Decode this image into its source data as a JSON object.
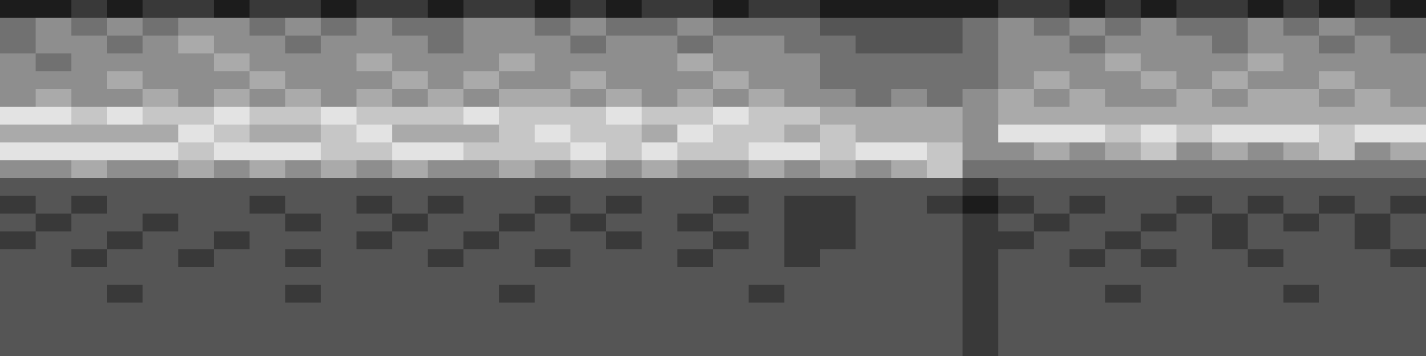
{
  "chart_data": {
    "type": "heatmap",
    "tick_labels": false,
    "color_range": [
      0,
      9
    ],
    "cells": [
      [
        1,
        1,
        2,
        1,
        2,
        2,
        1,
        2,
        2,
        1,
        2,
        2,
        1,
        2,
        2,
        1,
        2,
        1,
        2,
        2,
        1,
        2,
        2,
        1,
        1,
        1,
        1,
        1,
        2,
        2,
        1,
        2,
        1,
        2,
        2,
        1,
        2,
        1,
        2,
        1
      ],
      [
        4,
        5,
        4,
        5,
        4,
        5,
        5,
        4,
        5,
        4,
        5,
        4,
        4,
        5,
        5,
        4,
        5,
        4,
        4,
        5,
        4,
        4,
        4,
        3,
        3,
        3,
        3,
        4,
        5,
        4,
        5,
        4,
        5,
        4,
        4,
        5,
        4,
        5,
        4,
        4
      ],
      [
        4,
        5,
        5,
        4,
        5,
        6,
        5,
        5,
        4,
        5,
        5,
        5,
        4,
        5,
        5,
        5,
        4,
        5,
        5,
        4,
        5,
        5,
        4,
        4,
        3,
        3,
        3,
        4,
        5,
        5,
        4,
        5,
        5,
        5,
        4,
        5,
        5,
        4,
        5,
        4
      ],
      [
        5,
        4,
        5,
        5,
        5,
        5,
        6,
        5,
        5,
        5,
        6,
        5,
        5,
        5,
        6,
        5,
        5,
        5,
        5,
        6,
        5,
        5,
        5,
        4,
        4,
        4,
        4,
        4,
        5,
        5,
        5,
        6,
        5,
        5,
        5,
        6,
        5,
        5,
        5,
        5
      ],
      [
        5,
        5,
        5,
        6,
        5,
        5,
        5,
        6,
        5,
        5,
        5,
        6,
        5,
        6,
        5,
        5,
        6,
        5,
        5,
        5,
        6,
        5,
        5,
        4,
        4,
        4,
        4,
        4,
        5,
        6,
        5,
        5,
        6,
        5,
        6,
        5,
        5,
        6,
        5,
        5
      ],
      [
        5,
        6,
        5,
        5,
        6,
        5,
        6,
        5,
        6,
        5,
        6,
        5,
        6,
        5,
        6,
        6,
        5,
        6,
        5,
        6,
        5,
        6,
        5,
        5,
        4,
        5,
        4,
        5,
        6,
        5,
        6,
        5,
        5,
        6,
        5,
        6,
        6,
        5,
        6,
        5
      ],
      [
        8,
        8,
        7,
        8,
        7,
        7,
        8,
        7,
        7,
        8,
        7,
        7,
        7,
        8,
        7,
        7,
        7,
        8,
        7,
        7,
        8,
        7,
        7,
        6,
        6,
        6,
        6,
        5,
        6,
        6,
        6,
        6,
        6,
        6,
        6,
        6,
        6,
        6,
        6,
        6
      ],
      [
        6,
        6,
        6,
        6,
        6,
        8,
        7,
        6,
        6,
        7,
        8,
        6,
        6,
        6,
        7,
        8,
        7,
        7,
        6,
        8,
        7,
        7,
        6,
        7,
        6,
        6,
        6,
        5,
        8,
        8,
        8,
        7,
        8,
        7,
        8,
        8,
        8,
        7,
        8,
        8
      ],
      [
        8,
        8,
        8,
        8,
        8,
        7,
        8,
        8,
        8,
        7,
        7,
        8,
        8,
        7,
        7,
        7,
        8,
        7,
        8,
        7,
        7,
        8,
        8,
        7,
        8,
        8,
        7,
        5,
        5,
        6,
        5,
        6,
        7,
        5,
        6,
        5,
        6,
        7,
        5,
        6
      ],
      [
        5,
        5,
        6,
        5,
        5,
        6,
        5,
        6,
        5,
        6,
        5,
        6,
        5,
        5,
        6,
        5,
        6,
        5,
        6,
        5,
        5,
        6,
        5,
        6,
        5,
        6,
        7,
        4,
        4,
        4,
        4,
        4,
        4,
        4,
        4,
        4,
        4,
        4,
        4,
        4
      ],
      [
        3,
        3,
        3,
        3,
        3,
        3,
        3,
        3,
        3,
        3,
        3,
        3,
        3,
        3,
        3,
        3,
        3,
        3,
        3,
        3,
        3,
        3,
        3,
        3,
        3,
        3,
        3,
        2,
        3,
        3,
        3,
        3,
        3,
        3,
        3,
        3,
        3,
        3,
        3,
        3
      ],
      [
        2,
        3,
        2,
        3,
        3,
        3,
        3,
        2,
        3,
        3,
        2,
        3,
        2,
        3,
        3,
        2,
        3,
        2,
        3,
        3,
        2,
        3,
        2,
        2,
        3,
        3,
        2,
        1,
        2,
        3,
        2,
        3,
        3,
        2,
        3,
        2,
        3,
        2,
        3,
        2
      ],
      [
        3,
        2,
        3,
        3,
        2,
        3,
        3,
        3,
        2,
        3,
        3,
        2,
        3,
        3,
        2,
        3,
        2,
        3,
        3,
        2,
        3,
        3,
        2,
        2,
        3,
        3,
        3,
        2,
        3,
        2,
        3,
        3,
        2,
        3,
        2,
        3,
        2,
        3,
        2,
        3
      ],
      [
        2,
        3,
        3,
        2,
        3,
        3,
        2,
        3,
        3,
        3,
        2,
        3,
        3,
        2,
        3,
        3,
        3,
        2,
        3,
        3,
        2,
        3,
        2,
        2,
        3,
        3,
        3,
        2,
        2,
        3,
        3,
        2,
        3,
        3,
        2,
        3,
        3,
        3,
        2,
        3
      ],
      [
        3,
        3,
        2,
        3,
        3,
        2,
        3,
        3,
        2,
        3,
        3,
        3,
        2,
        3,
        3,
        2,
        3,
        3,
        3,
        2,
        3,
        3,
        2,
        3,
        3,
        3,
        3,
        2,
        3,
        3,
        2,
        3,
        2,
        3,
        3,
        2,
        3,
        3,
        3,
        2
      ],
      [
        3,
        3,
        3,
        3,
        3,
        3,
        3,
        3,
        3,
        3,
        3,
        3,
        3,
        3,
        3,
        3,
        3,
        3,
        3,
        3,
        3,
        3,
        3,
        3,
        3,
        3,
        3,
        2,
        3,
        3,
        3,
        3,
        3,
        3,
        3,
        3,
        3,
        3,
        3,
        3
      ],
      [
        3,
        3,
        3,
        2,
        3,
        3,
        3,
        3,
        2,
        3,
        3,
        3,
        3,
        3,
        2,
        3,
        3,
        3,
        3,
        3,
        3,
        2,
        3,
        3,
        3,
        3,
        3,
        2,
        3,
        3,
        3,
        2,
        3,
        3,
        3,
        3,
        2,
        3,
        3,
        3
      ],
      [
        3,
        3,
        3,
        3,
        3,
        3,
        3,
        3,
        3,
        3,
        3,
        3,
        3,
        3,
        3,
        3,
        3,
        3,
        3,
        3,
        3,
        3,
        3,
        3,
        3,
        3,
        3,
        2,
        3,
        3,
        3,
        3,
        3,
        3,
        3,
        3,
        3,
        3,
        3,
        3
      ],
      [
        3,
        3,
        3,
        3,
        3,
        3,
        3,
        3,
        3,
        3,
        3,
        3,
        3,
        3,
        3,
        3,
        3,
        3,
        3,
        3,
        3,
        3,
        3,
        3,
        3,
        3,
        3,
        2,
        3,
        3,
        3,
        3,
        3,
        3,
        3,
        3,
        3,
        3,
        3,
        3
      ],
      [
        3,
        3,
        3,
        3,
        3,
        3,
        3,
        3,
        3,
        3,
        3,
        3,
        3,
        3,
        3,
        3,
        3,
        3,
        3,
        3,
        3,
        3,
        3,
        3,
        3,
        3,
        3,
        2,
        3,
        3,
        3,
        3,
        3,
        3,
        3,
        3,
        3,
        3,
        3,
        3
      ]
    ]
  }
}
